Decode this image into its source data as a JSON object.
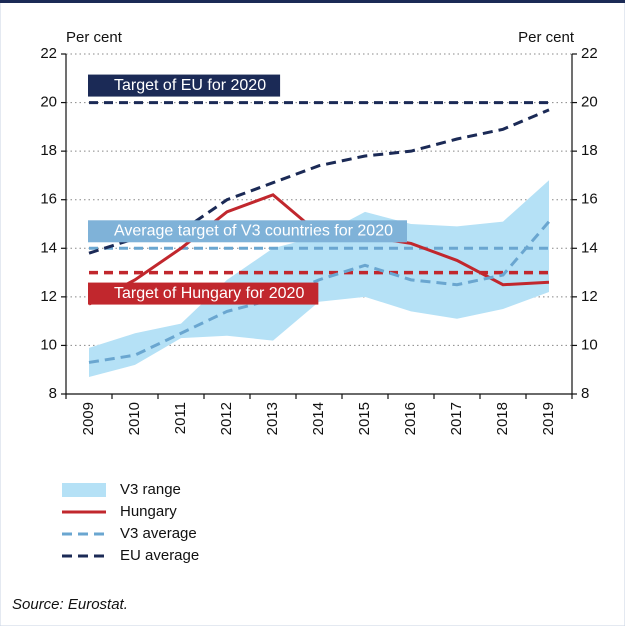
{
  "chart_data": {
    "type": "line",
    "y_label": "Per cent",
    "y2_label": "Per cent",
    "categories": [
      "2009",
      "2010",
      "2011",
      "2012",
      "2013",
      "2014",
      "2015",
      "2016",
      "2017",
      "2018",
      "2019"
    ],
    "ylim": [
      8,
      22
    ],
    "yticks": [
      8,
      10,
      12,
      14,
      16,
      18,
      20,
      22
    ],
    "y2lim": [
      8,
      22
    ],
    "y2ticks": [
      8,
      10,
      12,
      14,
      16,
      18,
      20,
      22
    ],
    "grid": true,
    "band": {
      "name": "V3 range",
      "color": "#b5e1f6",
      "low": [
        8.7,
        9.2,
        10.3,
        10.4,
        10.2,
        11.8,
        12.0,
        11.4,
        11.1,
        11.5,
        12.2
      ],
      "high": [
        9.9,
        10.5,
        10.9,
        12.7,
        14.0,
        14.5,
        15.5,
        15.0,
        14.9,
        15.1,
        16.8
      ]
    },
    "series": [
      {
        "name": "Hungary",
        "color": "#c1272d",
        "dash": false,
        "values": [
          11.7,
          12.7,
          14.0,
          15.5,
          16.2,
          14.6,
          14.5,
          14.2,
          13.5,
          12.5,
          12.6
        ]
      },
      {
        "name": "V3 average",
        "color": "#6aa6d0",
        "dash": true,
        "values": [
          9.3,
          9.6,
          10.5,
          11.4,
          11.9,
          12.7,
          13.3,
          12.7,
          12.5,
          12.9,
          15.1
        ]
      },
      {
        "name": "EU average",
        "color": "#1b2a56",
        "dash": true,
        "values": [
          13.8,
          14.4,
          14.7,
          16.0,
          16.7,
          17.4,
          17.8,
          18.0,
          18.5,
          18.9,
          19.7
        ]
      }
    ],
    "targets": [
      {
        "label": "Target of EU for 2020",
        "value": 20,
        "color": "#1b2a56",
        "box": "#1b2a56"
      },
      {
        "label": "Average target of V3 countries for 2020",
        "value": 14,
        "color": "#6aa6d0",
        "box": "#7fb2d8"
      },
      {
        "label": "Target of Hungary for 2020",
        "value": 13,
        "color": "#c1272d",
        "box": "#c1272d"
      }
    ],
    "source": "Source: Eurostat."
  }
}
